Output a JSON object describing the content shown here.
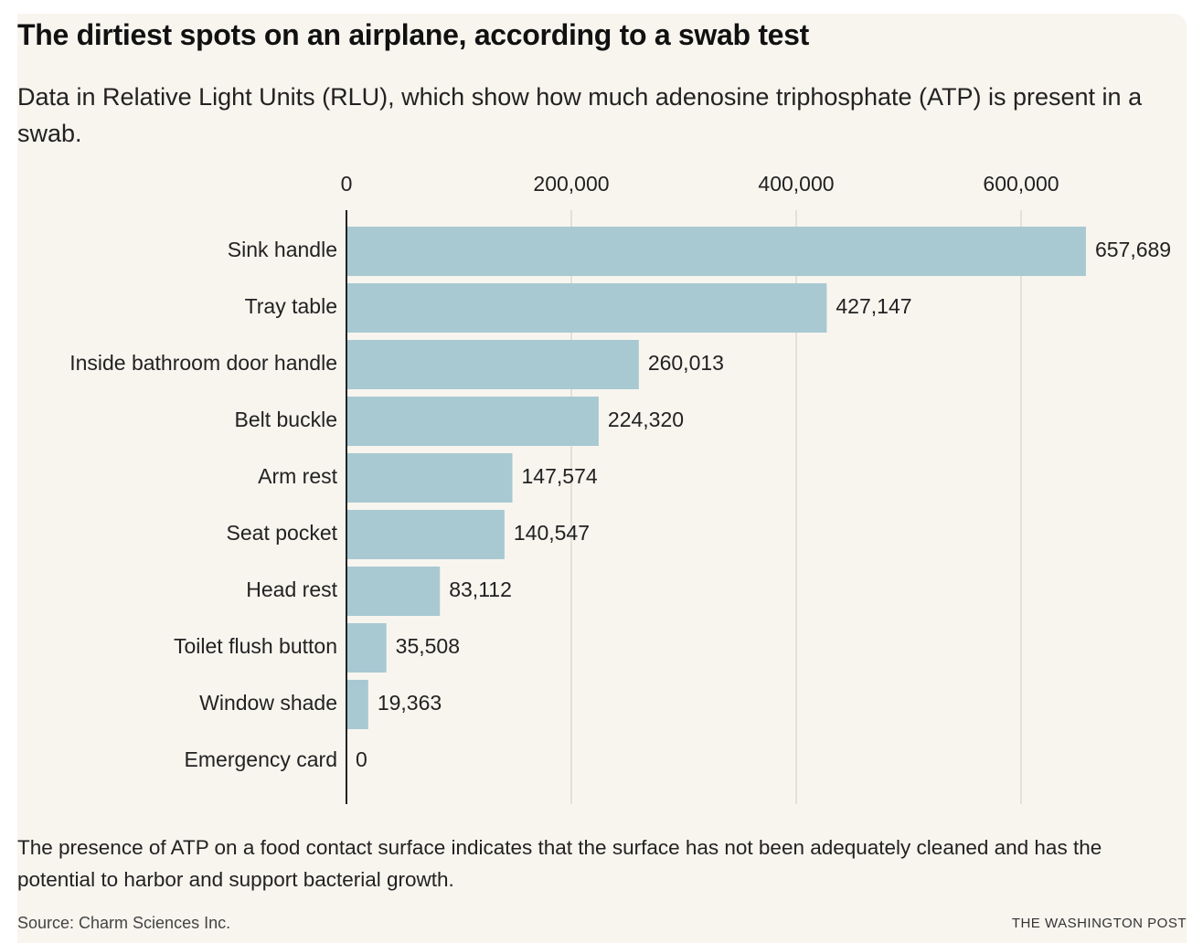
{
  "chart_data": {
    "type": "bar",
    "orientation": "horizontal",
    "title": "The dirtiest spots on an airplane, according to a swab test",
    "subtitle": "Data in Relative Light Units (RLU), which show how much adenosine triphosphate (ATP) is present in a swab.",
    "categories": [
      "Sink handle",
      "Tray table",
      "Inside bathroom door handle",
      "Belt buckle",
      "Arm rest",
      "Seat pocket",
      "Head rest",
      "Toilet flush button",
      "Window shade",
      "Emergency card"
    ],
    "values": [
      657689,
      427147,
      260013,
      224320,
      147574,
      140547,
      83112,
      35508,
      19363,
      0
    ],
    "value_labels": [
      "657,689",
      "427,147",
      "260,013",
      "224,320",
      "147,574",
      "140,547",
      "83,112",
      "35,508",
      "19,363",
      "0"
    ],
    "color": "#a8c9d2",
    "xlim": [
      0,
      700000
    ],
    "xticks": [
      0,
      {
        "value": 200000,
        "label": "200,000"
      },
      {
        "value": 400000,
        "label": "400,000"
      },
      {
        "value": 600000,
        "label": "600,000"
      }
    ],
    "grid": true,
    "note": "The presence of ATP on a food contact surface indicates that the surface has not been adequately cleaned and has the potential to harbor and support bacterial growth.",
    "source": "Source: Charm Sciences Inc.",
    "credit": "THE WASHINGTON POST"
  }
}
